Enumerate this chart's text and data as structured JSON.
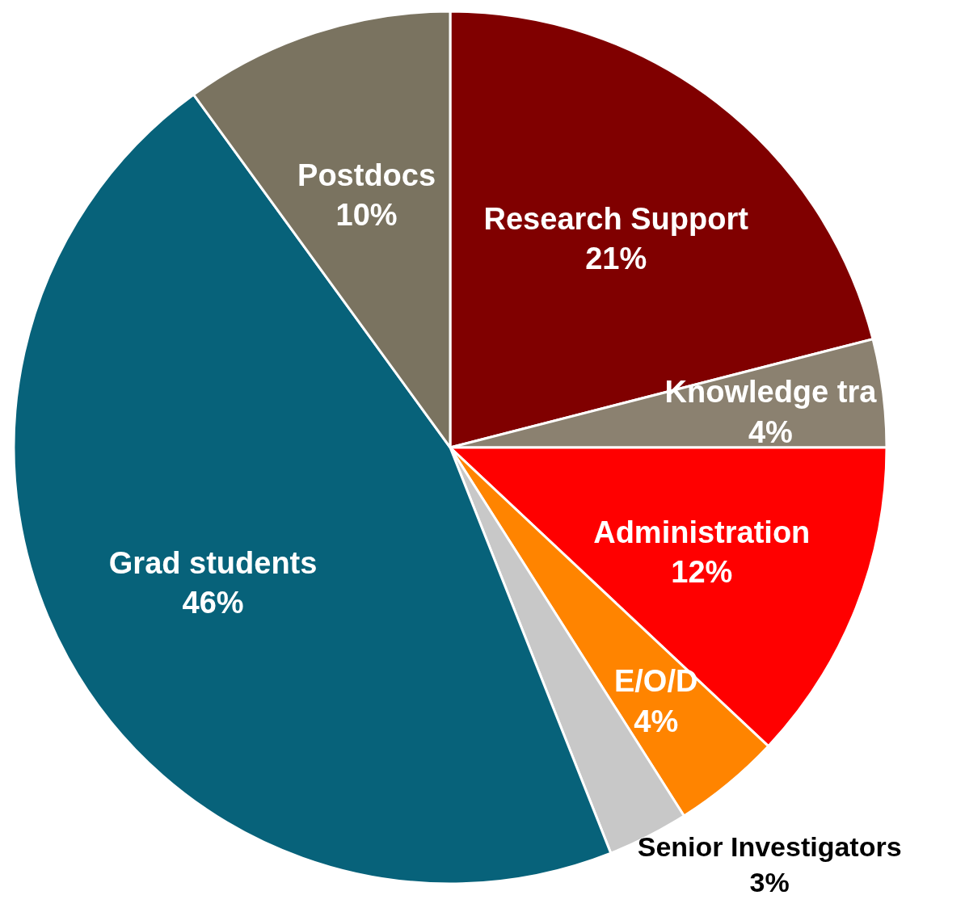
{
  "chart_data": {
    "type": "pie",
    "categories": [
      "Research Support",
      "Knowledge tra",
      "Administration",
      "E/O/D",
      "Senior Investigators",
      "Grad students",
      "Postdocs"
    ],
    "values": [
      21,
      4,
      12,
      4,
      3,
      46,
      10
    ],
    "colors": [
      "#800000",
      "#8b8170",
      "#ff0000",
      "#ff8400",
      "#c8c8c8",
      "#07627a",
      "#7a7360"
    ],
    "value_labels": [
      "21%",
      "4%",
      "12%",
      "4%",
      "3%",
      "46%",
      "10%"
    ]
  }
}
